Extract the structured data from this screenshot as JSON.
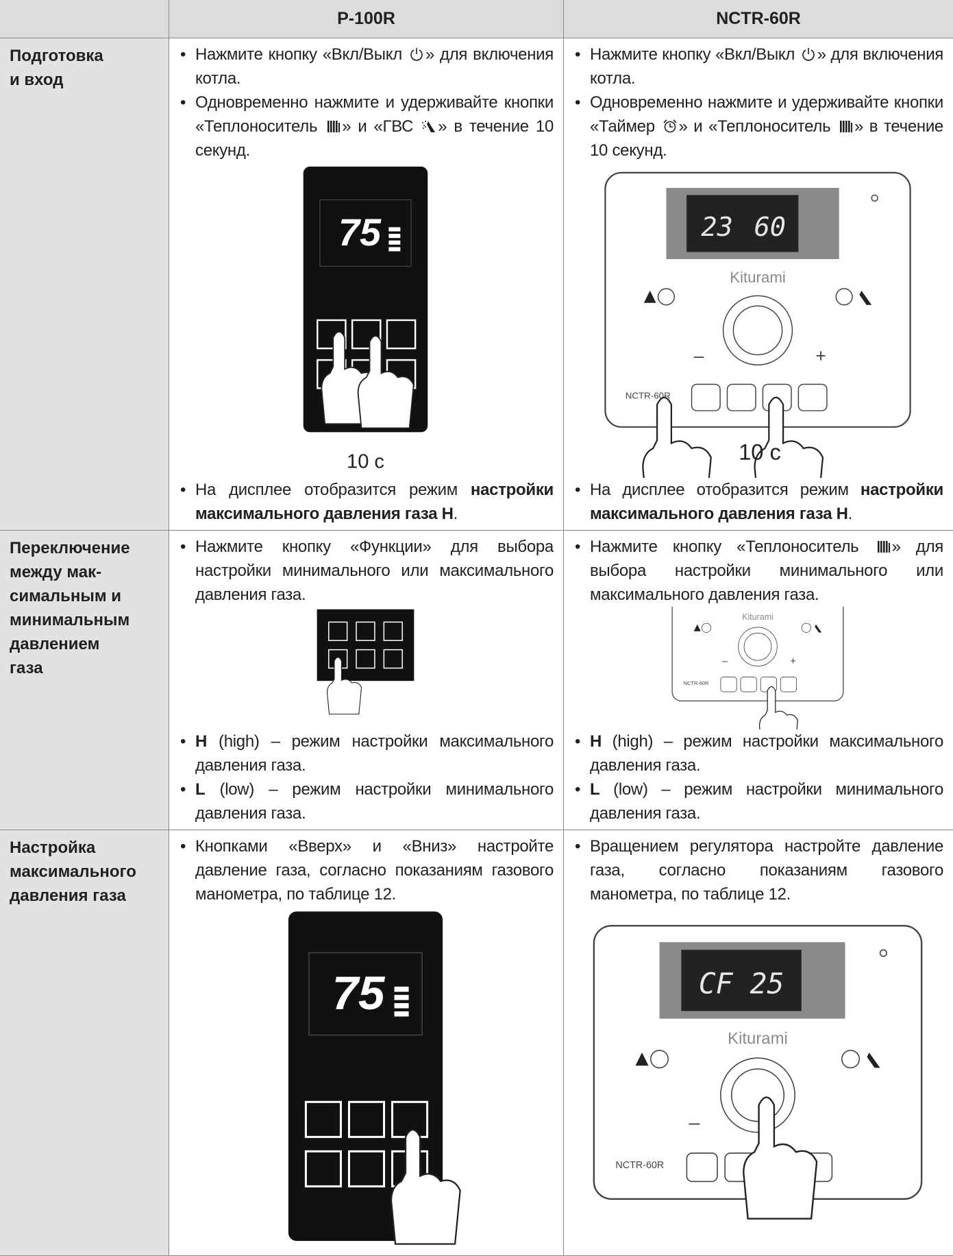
{
  "table": {
    "header": [
      "P-100R",
      "NCTR-60R"
    ],
    "rows": [
      {
        "label": [
          "Подготовка",
          "и вход"
        ],
        "cells": [
          {
            "before": [
              [
                "Нажмите кнопку «Вкл/Выкл ",
                {
                  "icon": "power"
                },
                "» для включения котла."
              ],
              [
                "Одновременно нажмите и удерживайте кнопки «Теплоноситель ",
                {
                  "icon": "radiator"
                },
                "» и «ГВС ",
                {
                  "icon": "shower"
                },
                "» в течение 10 секунд."
              ]
            ],
            "figure": {
              "kind": "p100",
              "display": "75",
              "caption": "10 с"
            },
            "after": [
              [
                "На дисплее отобразится режим ",
                {
                  "text": "настройки максимального давления газа H",
                  "bold": true
                },
                "."
              ]
            ]
          },
          {
            "before": [
              [
                "Нажмите кнопку «Вкл/Выкл ",
                {
                  "icon": "power"
                },
                "» для включения котла."
              ],
              [
                "Одновременно нажмите и удерживайте кнопки «Таймер ",
                {
                  "icon": "timer"
                },
                "» и «Теплоноситель ",
                {
                  "icon": "radiator"
                },
                "» в течение 10 секунд."
              ]
            ],
            "figure": {
              "kind": "nctr",
              "display": [
                "23",
                "60"
              ],
              "brand": "Kiturami",
              "model": "NCTR-60R",
              "knob_marks": [
                "–",
                "+"
              ],
              "caption": "10 с"
            },
            "after": [
              [
                "На дисплее отобразится режим ",
                {
                  "text": "настройки максимального давления газа H",
                  "bold": true
                },
                "."
              ]
            ]
          }
        ]
      },
      {
        "label": [
          "Переключение",
          "между мак-",
          "симальным и",
          "минимальным",
          "давлением",
          "газа"
        ],
        "cells": [
          {
            "before": [
              [
                "Нажмите кнопку «Функции» для выбора настройки минимального или максимального давления газа."
              ]
            ],
            "figure": {
              "kind": "p100-keys"
            },
            "after": [
              [
                {
                  "text": "H",
                  "bold": true
                },
                " (high) – режим настройки максимального давления газа."
              ],
              [
                {
                  "text": "L",
                  "bold": true
                },
                " (low) – режим настройки минимального давления газа."
              ]
            ]
          },
          {
            "before": [
              [
                "Нажмите кнопку «Теплоноситель ",
                {
                  "icon": "radiator"
                },
                "» для выбора настройки минимального или максимального давления газа."
              ]
            ],
            "figure": {
              "kind": "nctr",
              "brand": "Kiturami",
              "model": "NCTR-60R",
              "knob_marks": [
                "–",
                "+"
              ]
            },
            "after": [
              [
                {
                  "text": "H",
                  "bold": true
                },
                " (high) – режим настройки максимального давления газа."
              ],
              [
                {
                  "text": "L",
                  "bold": true
                },
                " (low) – режим настройки минимального давления газа."
              ]
            ]
          }
        ]
      },
      {
        "label": [
          "Настройка",
          "максимального",
          "давления газа"
        ],
        "cells": [
          {
            "before": [
              [
                "Кнопками «Вверх» и «Вниз» настройте давление газа, согласно показаниям газового манометра, по таблице 12."
              ]
            ],
            "figure": {
              "kind": "p100",
              "display": "75"
            },
            "after": []
          },
          {
            "before": [
              [
                "Вращением регулятора настройте давление газа, согласно показаниям газового манометра, по таблице 12."
              ]
            ],
            "figure": {
              "kind": "nctr",
              "display": [
                "CF 25"
              ],
              "brand": "Kiturami",
              "model": "NCTR-60R",
              "knob_marks": [
                "–"
              ]
            },
            "after": []
          }
        ]
      }
    ]
  }
}
